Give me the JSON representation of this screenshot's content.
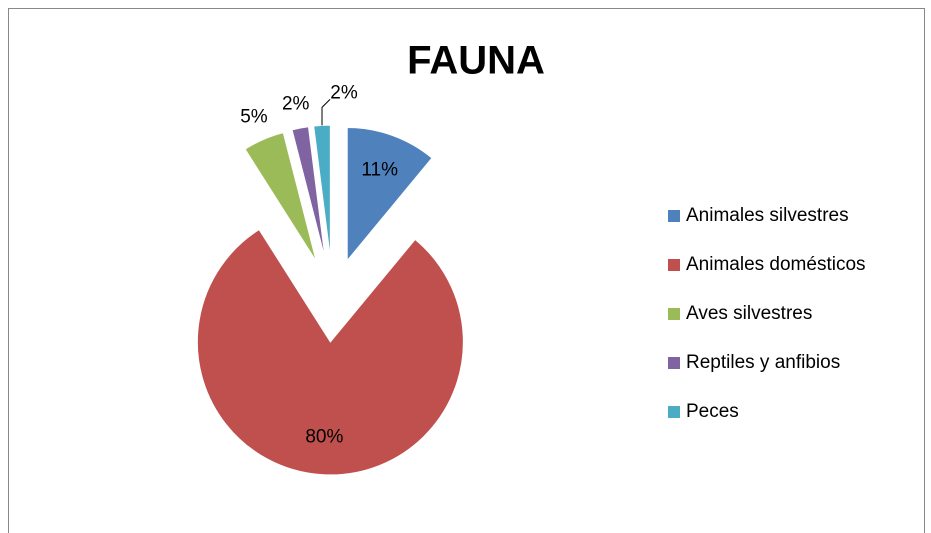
{
  "chart_data": {
    "type": "pie",
    "title": "FAUNA",
    "categories": [
      "Animales silvestres",
      "Animales domésticos",
      "Aves silvestres",
      "Reptiles y anfibios",
      "Peces"
    ],
    "values": [
      11,
      80,
      5,
      2,
      2
    ],
    "value_labels": [
      "11%",
      "80%",
      "5%",
      "2%",
      "2%"
    ],
    "colors": [
      "#4f81bd",
      "#c0504d",
      "#9bbb59",
      "#8064a2",
      "#4bacc6"
    ],
    "legend": "right"
  }
}
